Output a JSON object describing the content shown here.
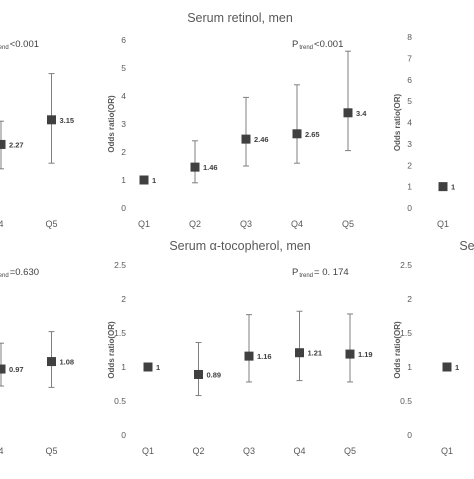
{
  "chart_data": [
    {
      "id": "left-top",
      "type": "errorbar",
      "categories": [
        "Q4",
        "Q5"
      ],
      "categories_text": [
        "4",
        "Q5"
      ],
      "values": [
        2.27,
        3.15
      ],
      "lower": [
        1.4,
        1.6
      ],
      "upper": [
        3.1,
        4.8
      ],
      "data_labels": [
        "2.27",
        "3.15"
      ],
      "ptrend": {
        "prefix": "",
        "sub": "trend",
        "text": "<0.001"
      }
    },
    {
      "id": "center-top",
      "type": "errorbar",
      "title": "Serum retinol, men",
      "ylabel": "Odds ratio(OR)",
      "ylim": [
        0,
        6
      ],
      "yticks": [
        "0",
        "1",
        "2",
        "3",
        "4",
        "5",
        "6"
      ],
      "categories": [
        "Q1",
        "Q2",
        "Q3",
        "Q4",
        "Q5"
      ],
      "values": [
        1,
        1.46,
        2.46,
        2.65,
        3.4
      ],
      "lower": [
        1,
        0.9,
        1.5,
        1.6,
        2.05
      ],
      "upper": [
        1,
        2.4,
        3.95,
        4.4,
        5.6
      ],
      "data_labels": [
        "1",
        "1.46",
        "2.46",
        "2.65",
        "3.4"
      ],
      "ptrend": {
        "prefix": "P",
        "sub": "trend",
        "text": "<0.001"
      }
    },
    {
      "id": "right-top",
      "type": "errorbar",
      "ylabel": "Odds ratio(OR)",
      "ylim": [
        0,
        8
      ],
      "yticks": [
        "0",
        "1",
        "2",
        "3",
        "4",
        "5",
        "6",
        "7",
        "8"
      ],
      "categories": [
        "Q1"
      ],
      "values": [
        1
      ],
      "lower": [
        1
      ],
      "upper": [
        1
      ],
      "data_labels": [
        "1"
      ]
    },
    {
      "id": "left-bottom",
      "type": "errorbar",
      "categories": [
        "Q4",
        "Q5"
      ],
      "categories_text": [
        "4",
        "Q5"
      ],
      "values": [
        0.97,
        1.08
      ],
      "lower": [
        0.72,
        0.7
      ],
      "upper": [
        1.35,
        1.52
      ],
      "data_labels": [
        "0.97",
        "1.08"
      ],
      "ptrend": {
        "prefix": "",
        "sub": "trend",
        "text": "=0.630"
      }
    },
    {
      "id": "center-bottom",
      "type": "errorbar",
      "title": "Serum α-tocopherol, men",
      "ylabel": "Odds ratio(OR)",
      "ylim": [
        0,
        2.5
      ],
      "yticks": [
        "0",
        "0.5",
        "1",
        "1.5",
        "2",
        "2.5"
      ],
      "categories": [
        "Q1",
        "Q2",
        "Q3",
        "Q4",
        "Q5"
      ],
      "values": [
        1,
        0.89,
        1.16,
        1.21,
        1.19
      ],
      "lower": [
        1,
        0.58,
        0.78,
        0.8,
        0.78
      ],
      "upper": [
        1,
        1.36,
        1.77,
        1.82,
        1.78
      ],
      "data_labels": [
        "1",
        "0.89",
        "1.16",
        "1.21",
        "1.19"
      ],
      "ptrend": {
        "prefix": "P",
        "sub": "trend",
        "text": "= 0. 174"
      }
    },
    {
      "id": "right-bottom",
      "type": "errorbar",
      "title": "Se",
      "ylabel": "Odds ratio(OR)",
      "ylim": [
        0,
        2.5
      ],
      "yticks": [
        "0",
        "0.5",
        "1",
        "1.5",
        "2",
        "2.5"
      ],
      "categories": [
        "Q1"
      ],
      "values": [
        1
      ],
      "lower": [
        1
      ],
      "upper": [
        1
      ],
      "data_labels": [
        "1"
      ]
    }
  ]
}
